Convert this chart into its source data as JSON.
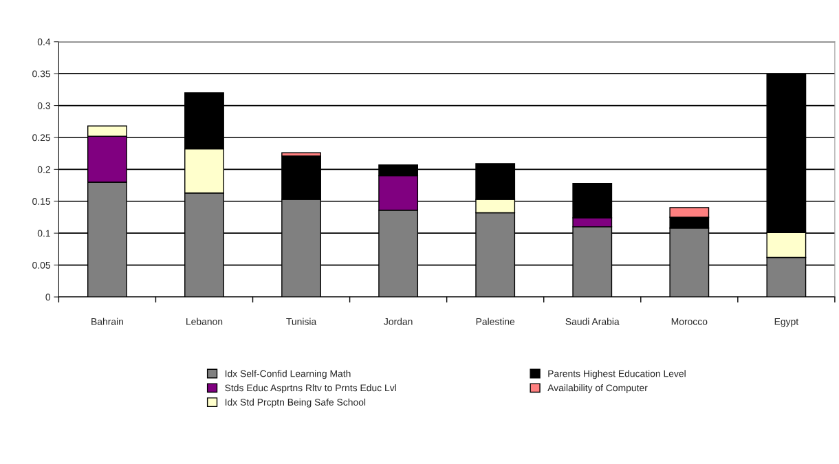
{
  "chart_data": {
    "type": "bar",
    "stacked": true,
    "categories": [
      "Bahrain",
      "Lebanon",
      "Tunisia",
      "Jordan",
      "Palestine",
      "Saudi Arabia",
      "Morocco",
      "Egypt"
    ],
    "series": [
      {
        "name": "Idx Self-Confid Learning Math",
        "color": "#808080",
        "values": [
          0.18,
          0.163,
          0.153,
          0.136,
          0.132,
          0.11,
          0.108,
          0.062
        ]
      },
      {
        "name": "Stds Educ Asprtns Rltv to Prnts Educ Lvl",
        "color": "#800080",
        "values": [
          0.072,
          null,
          null,
          0.054,
          null,
          0.014,
          null,
          null
        ]
      },
      {
        "name": "Idx Std Prcptn Being Safe School",
        "color": "#ffffcc",
        "values": [
          0.016,
          0.069,
          null,
          null,
          0.021,
          null,
          null,
          0.039
        ]
      },
      {
        "name": "Parents Highest Education Level",
        "color": "#000000",
        "values": [
          null,
          0.088,
          0.068,
          0.017,
          0.056,
          0.054,
          0.017,
          0.249
        ]
      },
      {
        "name": "Availability of Computer",
        "color": "#ff8080",
        "values": [
          null,
          null,
          0.005,
          null,
          null,
          null,
          0.015,
          null
        ]
      }
    ],
    "ylim": [
      0,
      0.4
    ],
    "yticks": [
      0,
      0.05,
      0.1,
      0.15,
      0.2,
      0.25,
      0.3,
      0.35,
      0.4
    ],
    "grid": "y",
    "legend": "bottom"
  }
}
